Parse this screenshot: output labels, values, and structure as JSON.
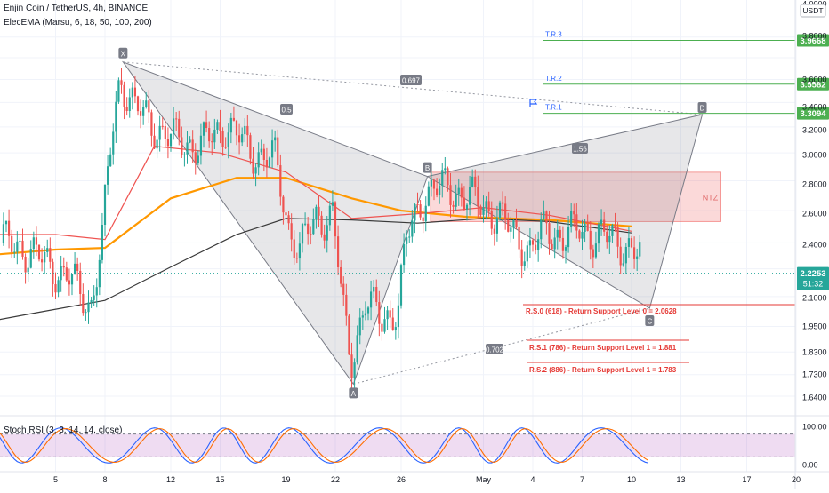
{
  "header": {
    "symbol_line": "Enjin Coin / TetherUS, 4h, BINANCE",
    "indicator_line": "ElecEMA (Marsu, 6, 18, 50, 100, 200)",
    "stoch_line": "Stoch RSI (3, 3, 14, 14, close)"
  },
  "price_axis": {
    "currency": "USDT",
    "ticks": [
      "4.0000",
      "3.8000",
      "3.6000",
      "3.4000",
      "3.2000",
      "3.0000",
      "2.8000",
      "2.6000",
      "2.4000",
      "2.2500",
      "2.1000",
      "1.9500",
      "1.8300",
      "1.7300",
      "1.6400"
    ],
    "last_price": "2.2253",
    "countdown": "51:32"
  },
  "targets": [
    {
      "label": "T.R.3",
      "value": 3.9668,
      "tag": "3.9668"
    },
    {
      "label": "T.R.2",
      "value": 3.5582,
      "tag": "3.5582"
    },
    {
      "label": "T.R.1",
      "value": 3.3094,
      "tag": "3.3094"
    }
  ],
  "support_levels": [
    {
      "text": "R.S.0 (618) - Return Support Level 0 =  2.0628",
      "value": 2.0628
    },
    {
      "text": "R.S.1 (786) - Return Support Level 1 = 1.881",
      "value": 1.881
    },
    {
      "text": "R.S.2 (886) - Return Support Level 1 = 1.783",
      "value": 1.783
    }
  ],
  "pattern": {
    "points": [
      {
        "label": "X",
        "day": 9.1,
        "price": 3.76
      },
      {
        "label": "A",
        "day": 23.1,
        "price": 1.69
      },
      {
        "label": "B",
        "day": 27.6,
        "price": 2.83
      },
      {
        "label": "C",
        "day": 41.1,
        "price": 2.04
      },
      {
        "label": "D",
        "day": 44.3,
        "price": 3.3
      }
    ],
    "ratios": [
      {
        "text": "0.697"
      },
      {
        "text": "0.5"
      },
      {
        "text": "1.56"
      },
      {
        "text": "0.702"
      }
    ],
    "ntz": {
      "label": "NTZ",
      "price_top": 2.86,
      "price_bottom": 2.53,
      "day_start": 28.0,
      "day_end": 45.0
    }
  },
  "stoch_axis": {
    "ticks": [
      "100.00",
      "0.00"
    ],
    "upper_band": 80,
    "lower_band": 20
  },
  "time_axis": {
    "labels": [
      {
        "text": "5",
        "day": 5
      },
      {
        "text": "8",
        "day": 8
      },
      {
        "text": "12",
        "day": 12
      },
      {
        "text": "15",
        "day": 15
      },
      {
        "text": "19",
        "day": 19
      },
      {
        "text": "22",
        "day": 22
      },
      {
        "text": "26",
        "day": 26
      },
      {
        "text": "May",
        "day": 31
      },
      {
        "text": "4",
        "day": 34
      },
      {
        "text": "7",
        "day": 37
      },
      {
        "text": "10",
        "day": 40
      },
      {
        "text": "13",
        "day": 43
      },
      {
        "text": "17",
        "day": 47
      },
      {
        "text": "20",
        "day": 50
      }
    ]
  },
  "chart_data": {
    "type": "candlestick",
    "interval": "4h",
    "x_unit": "day (April 1..30, May 1 = 31)",
    "series": [
      {
        "name": "ElecEMA",
        "values": []
      },
      {
        "name": "Stoch RSI",
        "values": []
      }
    ],
    "ema_paths": [
      {
        "color": "#ff9800",
        "points": [
          [
            0,
            2.32
          ],
          [
            5,
            2.36
          ],
          [
            8,
            2.37
          ],
          [
            12,
            2.68
          ],
          [
            16,
            2.82
          ],
          [
            19,
            2.82
          ],
          [
            23,
            2.68
          ],
          [
            26,
            2.6
          ],
          [
            30,
            2.56
          ],
          [
            35,
            2.54
          ],
          [
            40,
            2.5
          ]
        ]
      },
      {
        "color": "#ef5350",
        "points": [
          [
            0,
            2.45
          ],
          [
            5,
            2.45
          ],
          [
            8,
            2.42
          ],
          [
            11,
            3.05
          ],
          [
            15,
            3.0
          ],
          [
            19,
            2.86
          ],
          [
            23,
            2.55
          ],
          [
            27,
            2.58
          ],
          [
            31,
            2.62
          ],
          [
            35,
            2.57
          ],
          [
            40,
            2.47
          ]
        ]
      },
      {
        "color": "#3a3a3a",
        "points": [
          [
            0,
            1.96
          ],
          [
            4,
            2.02
          ],
          [
            8,
            2.08
          ],
          [
            12,
            2.26
          ],
          [
            16,
            2.45
          ],
          [
            19,
            2.55
          ],
          [
            23,
            2.54
          ],
          [
            27,
            2.52
          ],
          [
            31,
            2.55
          ],
          [
            35,
            2.53
          ],
          [
            40,
            2.46
          ]
        ]
      }
    ],
    "candles_summary": {
      "start_price": 2.45,
      "high": 3.76,
      "low": 1.69,
      "last": 2.2253
    },
    "price_ylim": [
      1.6,
      4.0
    ],
    "log_scale": true,
    "stoch_ylim": [
      0,
      100
    ]
  }
}
